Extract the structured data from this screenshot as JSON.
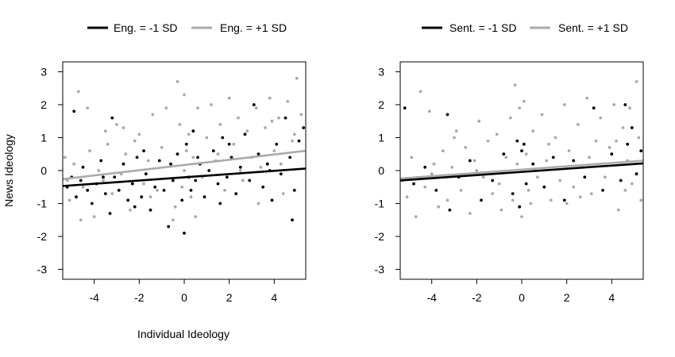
{
  "chart_data": [
    {
      "type": "scatter",
      "xlabel": "Individual Ideology",
      "ylabel": "News Ideology",
      "xlim": [
        -5.4,
        5.4
      ],
      "ylim": [
        -3.3,
        3.3
      ],
      "xticks": [
        "-4",
        "-2",
        "0",
        "2",
        "4"
      ],
      "yticks": [
        "3",
        "2",
        "1",
        "0",
        "-1",
        "-2",
        "-3"
      ],
      "legend_position": "top",
      "series": [
        {
          "name": "Eng. = -1 SD",
          "color": "#000000",
          "fit": {
            "x": [
              -5.4,
              5.4
            ],
            "y": [
              -0.47,
              0.06
            ]
          },
          "points": [
            [
              -5.2,
              -0.5
            ],
            [
              -5.0,
              -0.2
            ],
            [
              -4.8,
              -0.8
            ],
            [
              -4.6,
              -0.3
            ],
            [
              -4.5,
              0.1
            ],
            [
              -4.3,
              -0.6
            ],
            [
              -4.1,
              -1.0
            ],
            [
              -3.9,
              -0.4
            ],
            [
              -3.7,
              0.3
            ],
            [
              -3.5,
              -0.7
            ],
            [
              -3.3,
              -1.3
            ],
            [
              -3.2,
              1.6
            ],
            [
              -3.1,
              -0.2
            ],
            [
              -2.9,
              -0.6
            ],
            [
              -2.7,
              0.2
            ],
            [
              -2.5,
              -0.9
            ],
            [
              -2.3,
              -0.4
            ],
            [
              -2.1,
              0.4
            ],
            [
              -1.9,
              -0.8
            ],
            [
              -1.7,
              -0.1
            ],
            [
              -1.5,
              -1.2
            ],
            [
              -1.3,
              -0.5
            ],
            [
              -1.1,
              0.3
            ],
            [
              -0.9,
              -0.6
            ],
            [
              -0.7,
              -1.7
            ],
            [
              -0.5,
              -0.3
            ],
            [
              -0.3,
              0.5
            ],
            [
              -0.1,
              -0.9
            ],
            [
              0.0,
              -1.9
            ],
            [
              0.1,
              0.8
            ],
            [
              0.2,
              -0.2
            ],
            [
              0.3,
              -0.6
            ],
            [
              0.4,
              1.2
            ],
            [
              0.5,
              -0.3
            ],
            [
              0.7,
              0.2
            ],
            [
              0.9,
              -0.8
            ],
            [
              1.1,
              0.0
            ],
            [
              1.3,
              0.6
            ],
            [
              1.5,
              -0.4
            ],
            [
              1.7,
              1.0
            ],
            [
              1.9,
              -0.2
            ],
            [
              2.1,
              0.4
            ],
            [
              2.3,
              -0.7
            ],
            [
              2.5,
              0.1
            ],
            [
              2.7,
              1.1
            ],
            [
              2.9,
              -0.3
            ],
            [
              3.1,
              2.0
            ],
            [
              3.3,
              0.5
            ],
            [
              3.5,
              -0.5
            ],
            [
              3.7,
              0.2
            ],
            [
              3.9,
              -0.9
            ],
            [
              4.1,
              0.8
            ],
            [
              4.3,
              -0.1
            ],
            [
              4.5,
              1.6
            ],
            [
              4.7,
              0.4
            ],
            [
              4.9,
              -0.6
            ],
            [
              5.1,
              0.9
            ],
            [
              5.3,
              1.3
            ],
            [
              -4.9,
              1.8
            ],
            [
              -3.6,
              -0.2
            ],
            [
              -2.2,
              -1.1
            ],
            [
              -0.6,
              0.2
            ],
            [
              0.6,
              0.4
            ],
            [
              2.0,
              0.8
            ],
            [
              3.8,
              0.0
            ],
            [
              4.8,
              -1.5
            ],
            [
              -1.8,
              0.6
            ],
            [
              1.6,
              -1.0
            ]
          ]
        },
        {
          "name": "Eng. = +1 SD",
          "color": "#aaaaaa",
          "fit": {
            "x": [
              -5.4,
              5.4
            ],
            "y": [
              -0.26,
              0.6
            ]
          },
          "points": [
            [
              -5.3,
              0.4
            ],
            [
              -5.1,
              -0.9
            ],
            [
              -4.9,
              0.2
            ],
            [
              -4.7,
              2.4
            ],
            [
              -4.5,
              -0.5
            ],
            [
              -4.3,
              1.9
            ],
            [
              -4.2,
              0.6
            ],
            [
              -4.0,
              -1.4
            ],
            [
              -3.8,
              0.0
            ],
            [
              -3.6,
              -0.3
            ],
            [
              -3.4,
              0.8
            ],
            [
              -3.2,
              -0.7
            ],
            [
              -3.0,
              1.4
            ],
            [
              -2.8,
              -0.1
            ],
            [
              -2.6,
              0.5
            ],
            [
              -2.4,
              -1.2
            ],
            [
              -2.2,
              0.9
            ],
            [
              -2.0,
              1.1
            ],
            [
              -1.8,
              -0.4
            ],
            [
              -1.6,
              0.3
            ],
            [
              -1.4,
              1.7
            ],
            [
              -1.2,
              -0.6
            ],
            [
              -1.0,
              0.7
            ],
            [
              -0.8,
              1.9
            ],
            [
              -0.6,
              0.2
            ],
            [
              -0.4,
              -1.1
            ],
            [
              -0.3,
              2.7
            ],
            [
              -0.2,
              1.4
            ],
            [
              -0.1,
              -0.5
            ],
            [
              0.0,
              2.3
            ],
            [
              0.1,
              0.6
            ],
            [
              0.2,
              1.1
            ],
            [
              0.3,
              -0.8
            ],
            [
              0.4,
              0.4
            ],
            [
              0.6,
              1.9
            ],
            [
              0.8,
              -0.2
            ],
            [
              1.0,
              1.0
            ],
            [
              1.2,
              2.0
            ],
            [
              1.4,
              0.3
            ],
            [
              1.6,
              1.4
            ],
            [
              1.8,
              -0.6
            ],
            [
              2.0,
              2.2
            ],
            [
              2.2,
              0.8
            ],
            [
              2.4,
              1.6
            ],
            [
              2.6,
              -0.3
            ],
            [
              2.8,
              1.2
            ],
            [
              3.0,
              0.4
            ],
            [
              3.2,
              1.9
            ],
            [
              3.4,
              0.1
            ],
            [
              3.6,
              1.3
            ],
            [
              3.8,
              2.2
            ],
            [
              4.0,
              0.6
            ],
            [
              4.2,
              1.6
            ],
            [
              4.4,
              -0.7
            ],
            [
              4.6,
              2.1
            ],
            [
              4.8,
              0.9
            ],
            [
              5.0,
              2.8
            ],
            [
              5.2,
              1.7
            ],
            [
              -4.6,
              -1.5
            ],
            [
              -3.5,
              1.2
            ],
            [
              -1.5,
              -0.8
            ],
            [
              0.5,
              -1.4
            ],
            [
              1.5,
              0.5
            ],
            [
              3.3,
              -1.0
            ],
            [
              4.3,
              0.2
            ],
            [
              4.9,
              1.1
            ],
            [
              -2.7,
              1.3
            ],
            [
              2.5,
              0.0
            ],
            [
              -0.5,
              -1.5
            ],
            [
              0.0,
              0.0
            ],
            [
              3.9,
              1.5
            ],
            [
              -5.2,
              -0.3
            ]
          ]
        }
      ]
    },
    {
      "type": "scatter",
      "xlabel": "",
      "ylabel": "",
      "xlim": [
        -5.4,
        5.4
      ],
      "ylim": [
        -3.3,
        3.3
      ],
      "xticks": [
        "-4",
        "-2",
        "0",
        "2",
        "4"
      ],
      "yticks": [
        "3",
        "2",
        "1",
        "0",
        "-1",
        "-2",
        "-3"
      ],
      "legend_position": "top",
      "series": [
        {
          "name": "Sent. = -1 SD",
          "color": "#000000",
          "fit": {
            "x": [
              -5.4,
              5.4
            ],
            "y": [
              -0.3,
              0.22
            ]
          },
          "points": [
            [
              -5.2,
              1.9
            ],
            [
              -4.8,
              -0.4
            ],
            [
              -4.3,
              0.1
            ],
            [
              -3.8,
              -0.6
            ],
            [
              -3.3,
              1.7
            ],
            [
              -3.2,
              -1.2
            ],
            [
              -2.8,
              -0.2
            ],
            [
              -2.3,
              0.3
            ],
            [
              -1.8,
              -0.9
            ],
            [
              -1.3,
              -0.3
            ],
            [
              -0.8,
              0.5
            ],
            [
              -0.4,
              -0.7
            ],
            [
              -0.2,
              0.9
            ],
            [
              -0.1,
              -1.1
            ],
            [
              0.0,
              0.6
            ],
            [
              0.1,
              0.8
            ],
            [
              0.2,
              -0.4
            ],
            [
              0.5,
              0.2
            ],
            [
              1.0,
              -0.5
            ],
            [
              1.4,
              0.4
            ],
            [
              1.9,
              -0.9
            ],
            [
              2.3,
              0.3
            ],
            [
              2.8,
              -0.2
            ],
            [
              3.2,
              1.9
            ],
            [
              3.6,
              -0.6
            ],
            [
              4.0,
              0.5
            ],
            [
              4.4,
              -0.3
            ],
            [
              4.6,
              2.0
            ],
            [
              4.7,
              0.8
            ],
            [
              4.9,
              1.3
            ],
            [
              5.1,
              -0.1
            ],
            [
              5.3,
              0.6
            ]
          ]
        },
        {
          "name": "Sent. = +1 SD",
          "color": "#aaaaaa",
          "fit": {
            "x": [
              -5.4,
              5.4
            ],
            "y": [
              -0.24,
              0.3
            ]
          },
          "points": [
            [
              -5.3,
              -0.3
            ],
            [
              -5.1,
              -0.8
            ],
            [
              -4.9,
              0.4
            ],
            [
              -4.7,
              -1.4
            ],
            [
              -4.5,
              2.4
            ],
            [
              -4.3,
              -0.5
            ],
            [
              -4.1,
              1.8
            ],
            [
              -3.9,
              0.2
            ],
            [
              -3.7,
              -1.1
            ],
            [
              -3.5,
              0.6
            ],
            [
              -3.3,
              -0.9
            ],
            [
              -3.1,
              0.1
            ],
            [
              -2.9,
              1.2
            ],
            [
              -2.7,
              -0.6
            ],
            [
              -2.5,
              0.7
            ],
            [
              -2.3,
              -1.3
            ],
            [
              -2.1,
              0.3
            ],
            [
              -1.9,
              1.5
            ],
            [
              -1.7,
              -0.2
            ],
            [
              -1.5,
              0.9
            ],
            [
              -1.3,
              -0.7
            ],
            [
              -1.1,
              1.1
            ],
            [
              -0.9,
              -1.2
            ],
            [
              -0.7,
              0.4
            ],
            [
              -0.5,
              1.6
            ],
            [
              -0.4,
              -0.9
            ],
            [
              -0.3,
              2.6
            ],
            [
              -0.2,
              0.2
            ],
            [
              -0.1,
              1.9
            ],
            [
              0.0,
              -1.4
            ],
            [
              0.1,
              2.1
            ],
            [
              0.2,
              0.5
            ],
            [
              0.3,
              -0.6
            ],
            [
              0.5,
              1.2
            ],
            [
              0.7,
              -0.2
            ],
            [
              0.9,
              1.7
            ],
            [
              1.1,
              0.3
            ],
            [
              1.3,
              -0.9
            ],
            [
              1.5,
              1.0
            ],
            [
              1.7,
              -0.3
            ],
            [
              1.9,
              2.0
            ],
            [
              2.1,
              0.6
            ],
            [
              2.3,
              -0.5
            ],
            [
              2.5,
              1.4
            ],
            [
              2.7,
              0.1
            ],
            [
              2.9,
              2.2
            ],
            [
              3.1,
              -0.7
            ],
            [
              3.3,
              0.9
            ],
            [
              3.5,
              1.6
            ],
            [
              3.7,
              -0.2
            ],
            [
              3.9,
              0.7
            ],
            [
              4.1,
              2.0
            ],
            [
              4.3,
              -1.2
            ],
            [
              4.5,
              1.3
            ],
            [
              4.7,
              0.3
            ],
            [
              4.8,
              1.9
            ],
            [
              4.9,
              -0.4
            ],
            [
              5.1,
              2.7
            ],
            [
              5.2,
              1.0
            ],
            [
              5.3,
              -0.9
            ],
            [
              -4.0,
              -0.1
            ],
            [
              -2.0,
              0.0
            ],
            [
              0.6,
              0.0
            ],
            [
              2.0,
              -1.0
            ],
            [
              3.0,
              0.4
            ],
            [
              4.2,
              0.9
            ],
            [
              -3.0,
              1.0
            ],
            [
              1.2,
              0.8
            ],
            [
              -1.0,
              -0.4
            ],
            [
              0.4,
              -1.0
            ],
            [
              2.6,
              -0.8
            ],
            [
              4.6,
              -0.6
            ]
          ]
        }
      ]
    }
  ]
}
